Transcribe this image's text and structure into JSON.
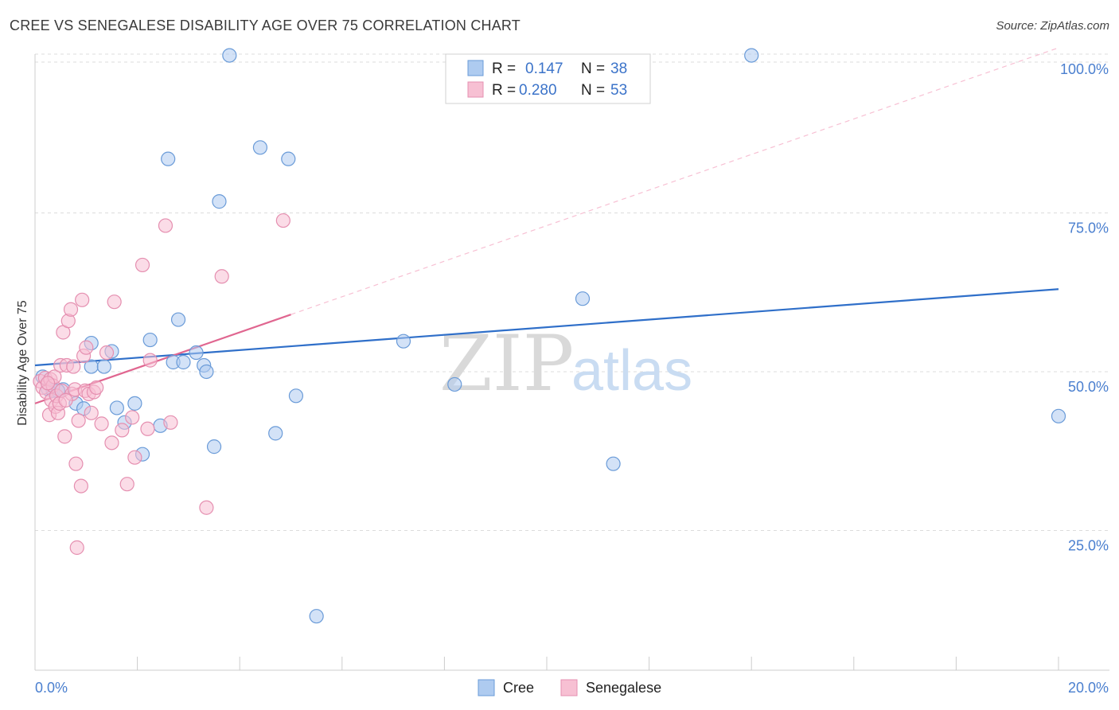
{
  "chart_data": {
    "type": "scatter",
    "title": "CREE VS SENEGALESE DISABILITY AGE OVER 75 CORRELATION CHART",
    "source": "Source: ZipAtlas.com",
    "xlabel": "",
    "ylabel": "Disability Age Over 75",
    "xlim": [
      0,
      20
    ],
    "ylim": [
      3,
      100
    ],
    "x_tick_labels": [
      "0.0%",
      "20.0%"
    ],
    "y_ticks": [
      {
        "value": 25,
        "label": "25.0%"
      },
      {
        "value": 50,
        "label": "50.0%"
      },
      {
        "value": 75,
        "label": "75.0%"
      },
      {
        "value": 100,
        "label": "100.0%"
      }
    ],
    "watermark": {
      "part1": "ZIP",
      "part2": "atlas"
    },
    "legend": {
      "position": "top-center",
      "entries": [
        {
          "r_label": "R =",
          "r_value": "0.147",
          "n_label": "N =",
          "n_value": "38"
        },
        {
          "r_label": "R =",
          "r_value": "0.280",
          "n_label": "N =",
          "n_value": "53"
        }
      ]
    },
    "series": [
      {
        "name": "Cree",
        "color": "#6a9bd8",
        "fill": "#aecbf0",
        "line_color": "#2f6fc9",
        "trend": {
          "x0": 0,
          "y0": 51.0,
          "x1": 20,
          "y1": 63.0
        },
        "points": [
          [
            0.15,
            49.2
          ],
          [
            0.25,
            47.3
          ],
          [
            0.35,
            47.0
          ],
          [
            0.55,
            47.2
          ],
          [
            0.8,
            45.0
          ],
          [
            0.95,
            44.2
          ],
          [
            1.1,
            54.5
          ],
          [
            1.1,
            50.8
          ],
          [
            1.35,
            50.8
          ],
          [
            1.5,
            53.2
          ],
          [
            1.6,
            44.3
          ],
          [
            1.75,
            42.0
          ],
          [
            1.95,
            45.0
          ],
          [
            2.1,
            37.0
          ],
          [
            2.25,
            55.0
          ],
          [
            2.45,
            41.5
          ],
          [
            2.6,
            83.5
          ],
          [
            2.7,
            51.5
          ],
          [
            2.8,
            58.2
          ],
          [
            2.9,
            51.5
          ],
          [
            3.15,
            53.0
          ],
          [
            3.3,
            51.0
          ],
          [
            3.35,
            50.0
          ],
          [
            3.5,
            38.2
          ],
          [
            3.6,
            76.8
          ],
          [
            3.8,
            99.8
          ],
          [
            4.4,
            85.3
          ],
          [
            4.7,
            40.3
          ],
          [
            4.95,
            83.5
          ],
          [
            5.1,
            46.2
          ],
          [
            5.5,
            11.5
          ],
          [
            7.2,
            54.8
          ],
          [
            8.2,
            48.0
          ],
          [
            10.7,
            61.5
          ],
          [
            11.3,
            35.5
          ],
          [
            14.0,
            99.8
          ],
          [
            20.0,
            43.0
          ],
          [
            0.45,
            47.0
          ]
        ]
      },
      {
        "name": "Senegalese",
        "color": "#e58fb0",
        "fill": "#f7c0d3",
        "line_color": "#e06690",
        "trend": {
          "x0": 0,
          "y0": 45.0,
          "x1": 5.0,
          "y1": 59.0
        },
        "trend_dashed": {
          "x0": 5.0,
          "y0": 59.0,
          "x1": 20.0,
          "y1": 101.0
        },
        "points": [
          [
            0.1,
            48.5
          ],
          [
            0.15,
            47.5
          ],
          [
            0.2,
            49.0
          ],
          [
            0.22,
            46.8
          ],
          [
            0.28,
            43.2
          ],
          [
            0.3,
            48.8
          ],
          [
            0.32,
            45.5
          ],
          [
            0.35,
            47.8
          ],
          [
            0.38,
            49.2
          ],
          [
            0.4,
            44.5
          ],
          [
            0.42,
            46.2
          ],
          [
            0.45,
            43.5
          ],
          [
            0.48,
            45.0
          ],
          [
            0.5,
            51.0
          ],
          [
            0.52,
            47.0
          ],
          [
            0.55,
            56.2
          ],
          [
            0.58,
            39.8
          ],
          [
            0.62,
            51.0
          ],
          [
            0.65,
            58.0
          ],
          [
            0.7,
            59.8
          ],
          [
            0.72,
            46.5
          ],
          [
            0.75,
            50.8
          ],
          [
            0.78,
            47.2
          ],
          [
            0.8,
            35.5
          ],
          [
            0.82,
            22.3
          ],
          [
            0.85,
            42.3
          ],
          [
            0.9,
            32.0
          ],
          [
            0.92,
            61.3
          ],
          [
            0.95,
            52.5
          ],
          [
            0.98,
            47.0
          ],
          [
            1.0,
            53.8
          ],
          [
            1.05,
            46.5
          ],
          [
            1.1,
            43.5
          ],
          [
            1.15,
            46.8
          ],
          [
            1.2,
            47.5
          ],
          [
            1.3,
            41.8
          ],
          [
            1.4,
            53.0
          ],
          [
            1.5,
            38.8
          ],
          [
            1.55,
            61.0
          ],
          [
            1.7,
            40.8
          ],
          [
            1.8,
            32.3
          ],
          [
            1.9,
            42.8
          ],
          [
            1.95,
            36.5
          ],
          [
            2.1,
            66.8
          ],
          [
            2.2,
            41.0
          ],
          [
            2.25,
            51.8
          ],
          [
            2.55,
            73.0
          ],
          [
            2.65,
            42.0
          ],
          [
            3.35,
            28.6
          ],
          [
            3.65,
            65.0
          ],
          [
            4.85,
            73.8
          ],
          [
            0.6,
            45.5
          ],
          [
            0.25,
            48.2
          ]
        ]
      }
    ]
  }
}
